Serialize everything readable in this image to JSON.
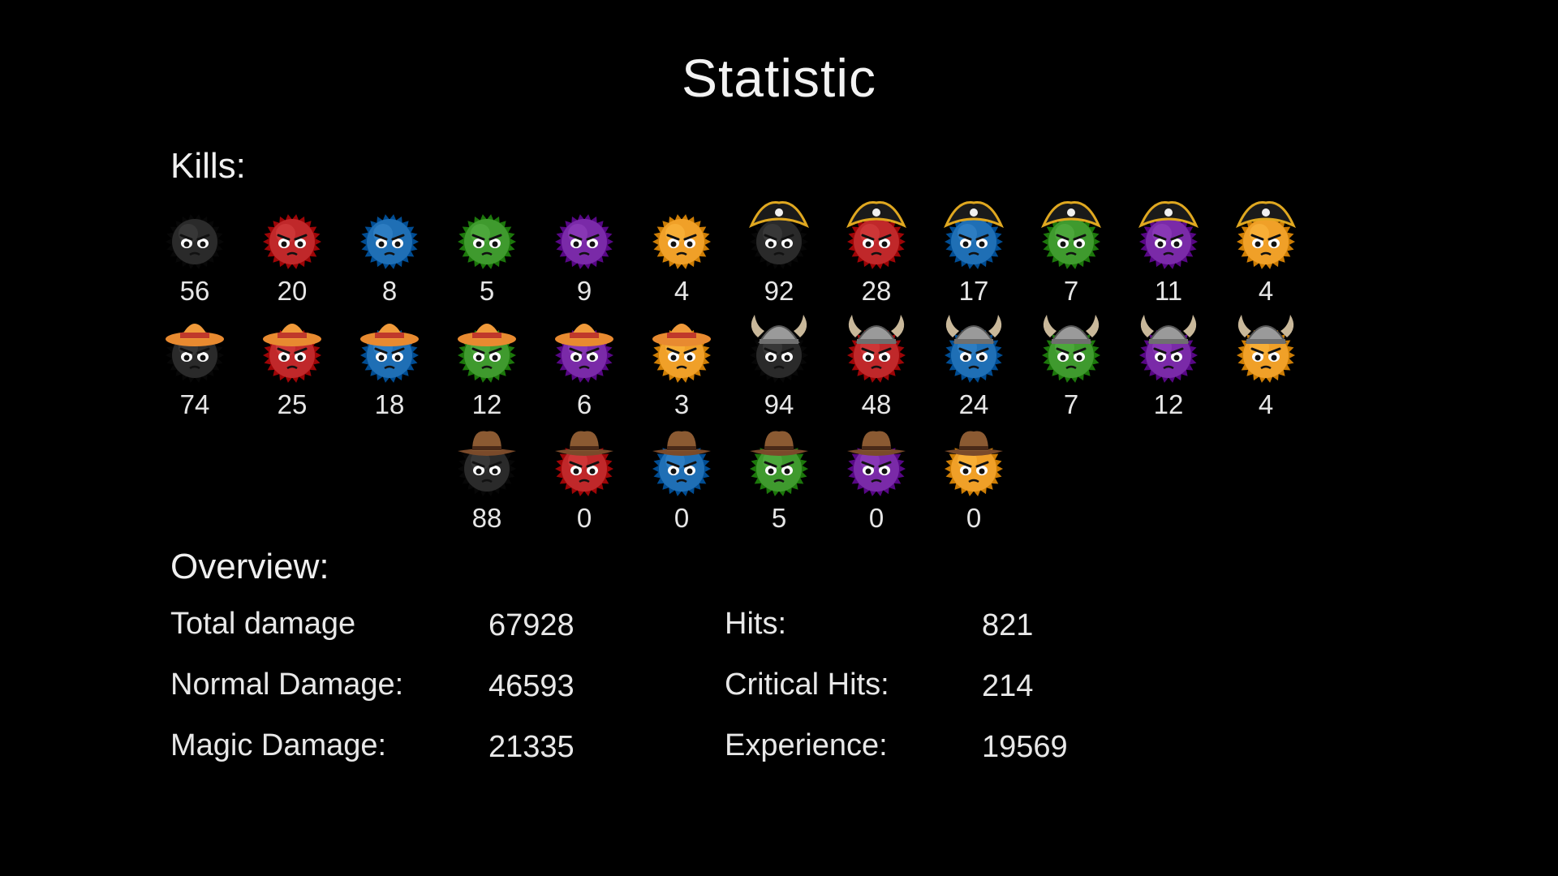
{
  "title": "Statistic",
  "kills_label": "Kills:",
  "overview_label": "Overview:",
  "body_colors": {
    "black": "#2a2a2a",
    "red": "#c0282a",
    "blue": "#1f6fb5",
    "green": "#3f9a2e",
    "purple": "#7a2aa8",
    "orange": "#f0a028"
  },
  "kill_rows": [
    {
      "hat": "none",
      "monsters": [
        {
          "body": "black",
          "hat": "none",
          "count": "56"
        },
        {
          "body": "red",
          "hat": "none",
          "count": "20"
        },
        {
          "body": "blue",
          "hat": "none",
          "count": "8"
        },
        {
          "body": "green",
          "hat": "none",
          "count": "5"
        },
        {
          "body": "purple",
          "hat": "none",
          "count": "9"
        },
        {
          "body": "orange",
          "hat": "none",
          "count": "4"
        },
        {
          "body": "black",
          "hat": "pirate",
          "count": "92"
        },
        {
          "body": "red",
          "hat": "pirate",
          "count": "28"
        },
        {
          "body": "blue",
          "hat": "pirate",
          "count": "17"
        },
        {
          "body": "green",
          "hat": "pirate",
          "count": "7"
        },
        {
          "body": "purple",
          "hat": "pirate",
          "count": "11"
        },
        {
          "body": "orange",
          "hat": "pirate",
          "count": "4"
        }
      ]
    },
    {
      "hat": "mixed",
      "monsters": [
        {
          "body": "black",
          "hat": "sombrero",
          "count": "74"
        },
        {
          "body": "red",
          "hat": "sombrero",
          "count": "25"
        },
        {
          "body": "blue",
          "hat": "sombrero",
          "count": "18"
        },
        {
          "body": "green",
          "hat": "sombrero",
          "count": "12"
        },
        {
          "body": "purple",
          "hat": "sombrero",
          "count": "6"
        },
        {
          "body": "orange",
          "hat": "sombrero",
          "count": "3"
        },
        {
          "body": "black",
          "hat": "viking",
          "count": "94"
        },
        {
          "body": "red",
          "hat": "viking",
          "count": "48"
        },
        {
          "body": "blue",
          "hat": "viking",
          "count": "24"
        },
        {
          "body": "green",
          "hat": "viking",
          "count": "7"
        },
        {
          "body": "purple",
          "hat": "viking",
          "count": "12"
        },
        {
          "body": "orange",
          "hat": "viking",
          "count": "4"
        }
      ]
    },
    {
      "hat": "cowboy",
      "monsters": [
        {
          "body": "black",
          "hat": "cowboy",
          "count": "88"
        },
        {
          "body": "red",
          "hat": "cowboy",
          "count": "0"
        },
        {
          "body": "blue",
          "hat": "cowboy",
          "count": "0"
        },
        {
          "body": "green",
          "hat": "cowboy",
          "count": "5"
        },
        {
          "body": "purple",
          "hat": "cowboy",
          "count": "0"
        },
        {
          "body": "orange",
          "hat": "cowboy",
          "count": "0"
        }
      ]
    }
  ],
  "overview": {
    "left": [
      {
        "label": "Total damage",
        "value": "67928"
      },
      {
        "label": "Normal Damage:",
        "value": "46593"
      },
      {
        "label": "Magic Damage:",
        "value": "21335"
      }
    ],
    "right": [
      {
        "label": "Hits:",
        "value": "821"
      },
      {
        "label": "Critical Hits:",
        "value": "214"
      },
      {
        "label": "Experience:",
        "value": "19569"
      }
    ]
  }
}
